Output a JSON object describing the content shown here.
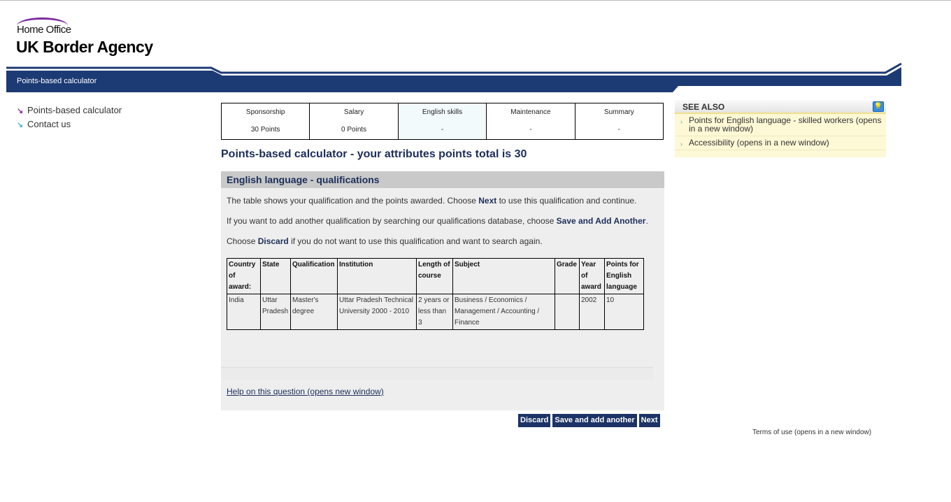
{
  "header": {
    "org": "Home Office",
    "agency": "UK Border Agency",
    "band_label": "Points-based calculator"
  },
  "left_nav": [
    {
      "label": "Points-based calculator",
      "icon": "arrow-down-right-purple"
    },
    {
      "label": "Contact us",
      "icon": "arrow-down-right-blue"
    }
  ],
  "steps": [
    {
      "label": "Sponsorship",
      "value": "30 Points"
    },
    {
      "label": "Salary",
      "value": "0 Points"
    },
    {
      "label": "English skills",
      "value": "-"
    },
    {
      "label": "Maintenance",
      "value": "-"
    },
    {
      "label": "Summary",
      "value": "-"
    }
  ],
  "page_title": "Points-based calculator - your attributes points total is 30",
  "section": {
    "title": "English language - qualifications",
    "p1": {
      "a": "The table shows your qualification and the points awarded. Choose ",
      "b": "Next",
      "c": " to use this qualification and continue."
    },
    "p2": {
      "a": "If you want to add another qualification by searching our qualifications database, choose ",
      "b": "Save and Add Another",
      "c": "."
    },
    "p3": {
      "a": "Choose ",
      "b": "Discard",
      "c": " if you do not want to use this qualification and want to search again."
    },
    "table": {
      "headers": [
        "Country of award:",
        "State",
        "Qualification",
        "Institution",
        "Length of course",
        "Subject",
        "Grade",
        "Year of award",
        "Points for English language"
      ],
      "row": [
        "India",
        "Uttar Pradesh",
        "Master's degree",
        "Uttar Pradesh Technical University 2000 - 2010",
        "2 years or less than 3",
        "Business / Economics / Management / Accounting / Finance",
        "",
        "2002",
        "10"
      ]
    },
    "help_link": "Help on this question (opens new window)"
  },
  "buttons": {
    "discard": "Discard",
    "save_add": "Save and add another",
    "next": "Next"
  },
  "see_also": {
    "title": "SEE ALSO",
    "items": [
      "Points for English language - skilled workers (opens in a new window)",
      "Accessibility (opens in a new window)"
    ]
  },
  "footer": {
    "terms": "Terms of use (opens in a new window)"
  },
  "colors": {
    "brand_blue": "#1c3a74",
    "button": "#1c3366",
    "heading": "#1c2e5a",
    "arc": "#7a2c9e"
  }
}
